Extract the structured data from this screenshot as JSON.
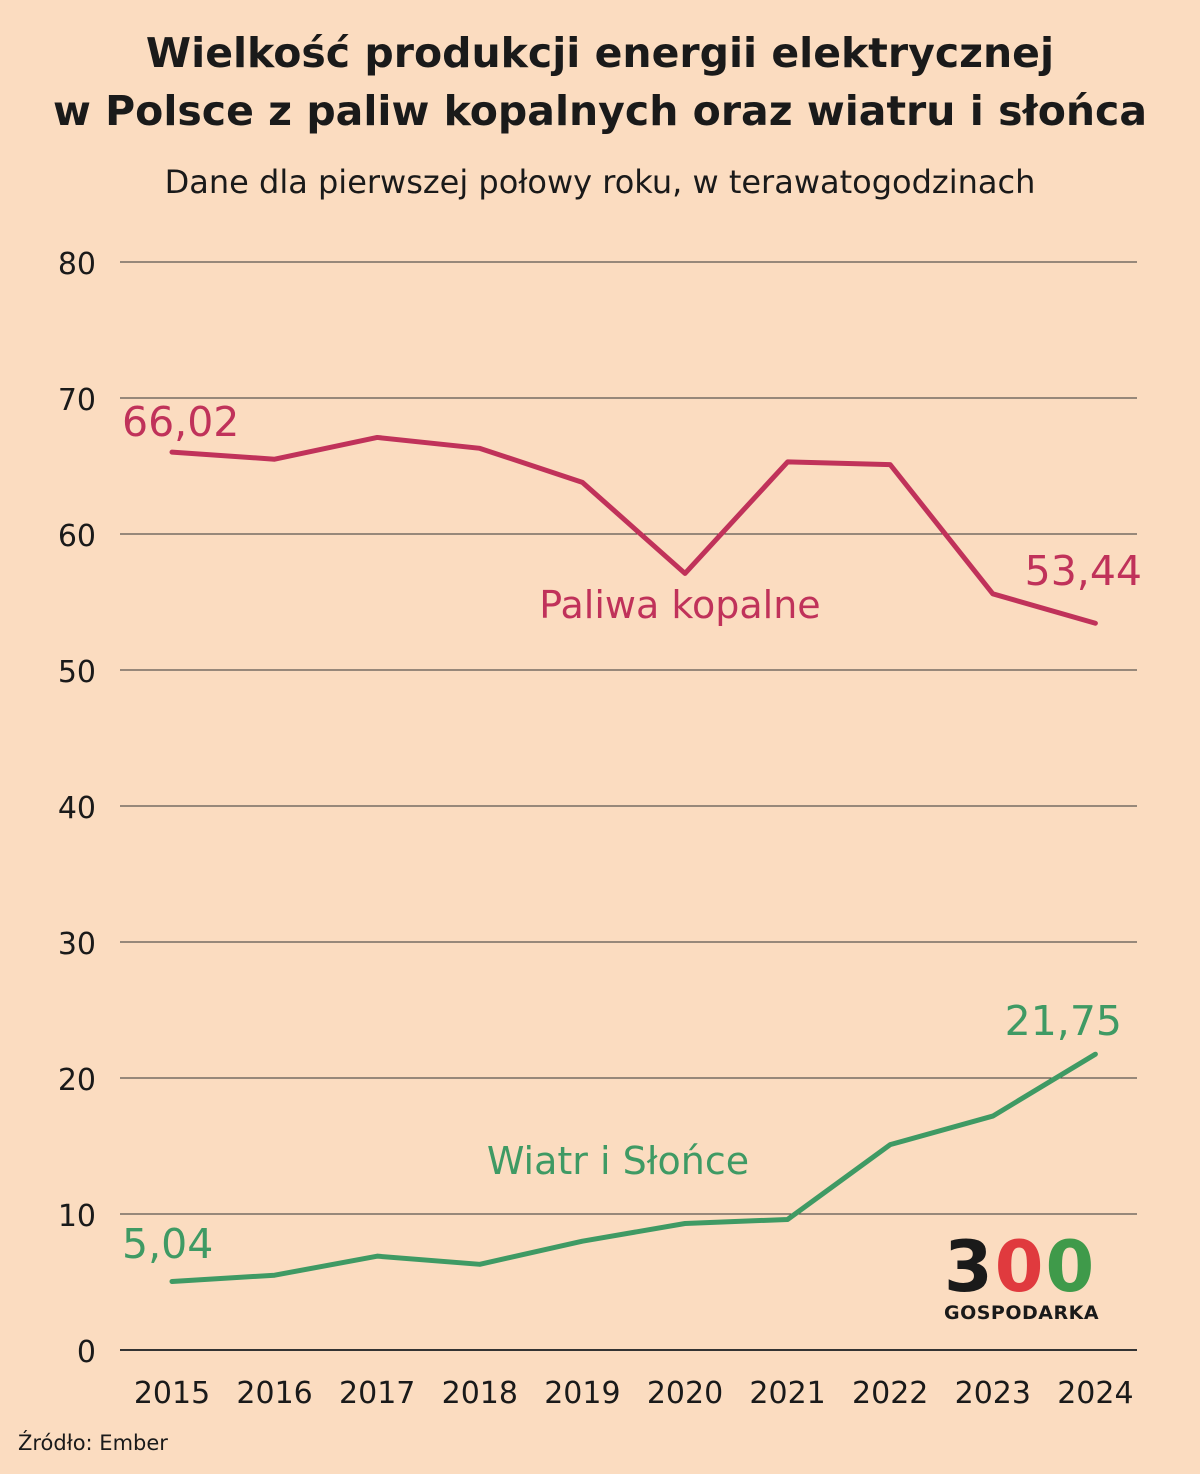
{
  "title_line1": "Wielkość produkcji energii elektrycznej",
  "title_line2": "w Polsce z paliw kopalnych oraz wiatru i słońca",
  "subtitle": "Dane dla pierwszej połowy roku, w terawatogodzinach",
  "source": "Źródło: Ember",
  "logo": {
    "digits": [
      "3",
      "0",
      "0"
    ],
    "label": "GOSPODARKA",
    "colors": [
      "#1a1a1a",
      "#e03a3e",
      "#3f9a4a"
    ]
  },
  "chart_data": {
    "type": "line",
    "x": [
      "2015",
      "2016",
      "2017",
      "2018",
      "2019",
      "2020",
      "2021",
      "2022",
      "2023",
      "2024"
    ],
    "ylim": [
      0,
      80
    ],
    "yticks": [
      0,
      10,
      20,
      30,
      40,
      50,
      60,
      70,
      80
    ],
    "grid": true,
    "series": [
      {
        "name": "Paliwa kopalne",
        "color": "#c0325a",
        "values": [
          66.02,
          65.5,
          67.1,
          66.3,
          63.8,
          57.1,
          65.3,
          65.1,
          55.6,
          53.44
        ]
      },
      {
        "name": "Wiatr i Słońce",
        "color": "#3f9a64",
        "values": [
          5.04,
          5.5,
          6.9,
          6.3,
          8.0,
          9.3,
          9.6,
          15.1,
          17.2,
          21.75
        ]
      }
    ],
    "annotations": [
      "66,02",
      "53,44",
      "5,04",
      "21,75"
    ]
  }
}
